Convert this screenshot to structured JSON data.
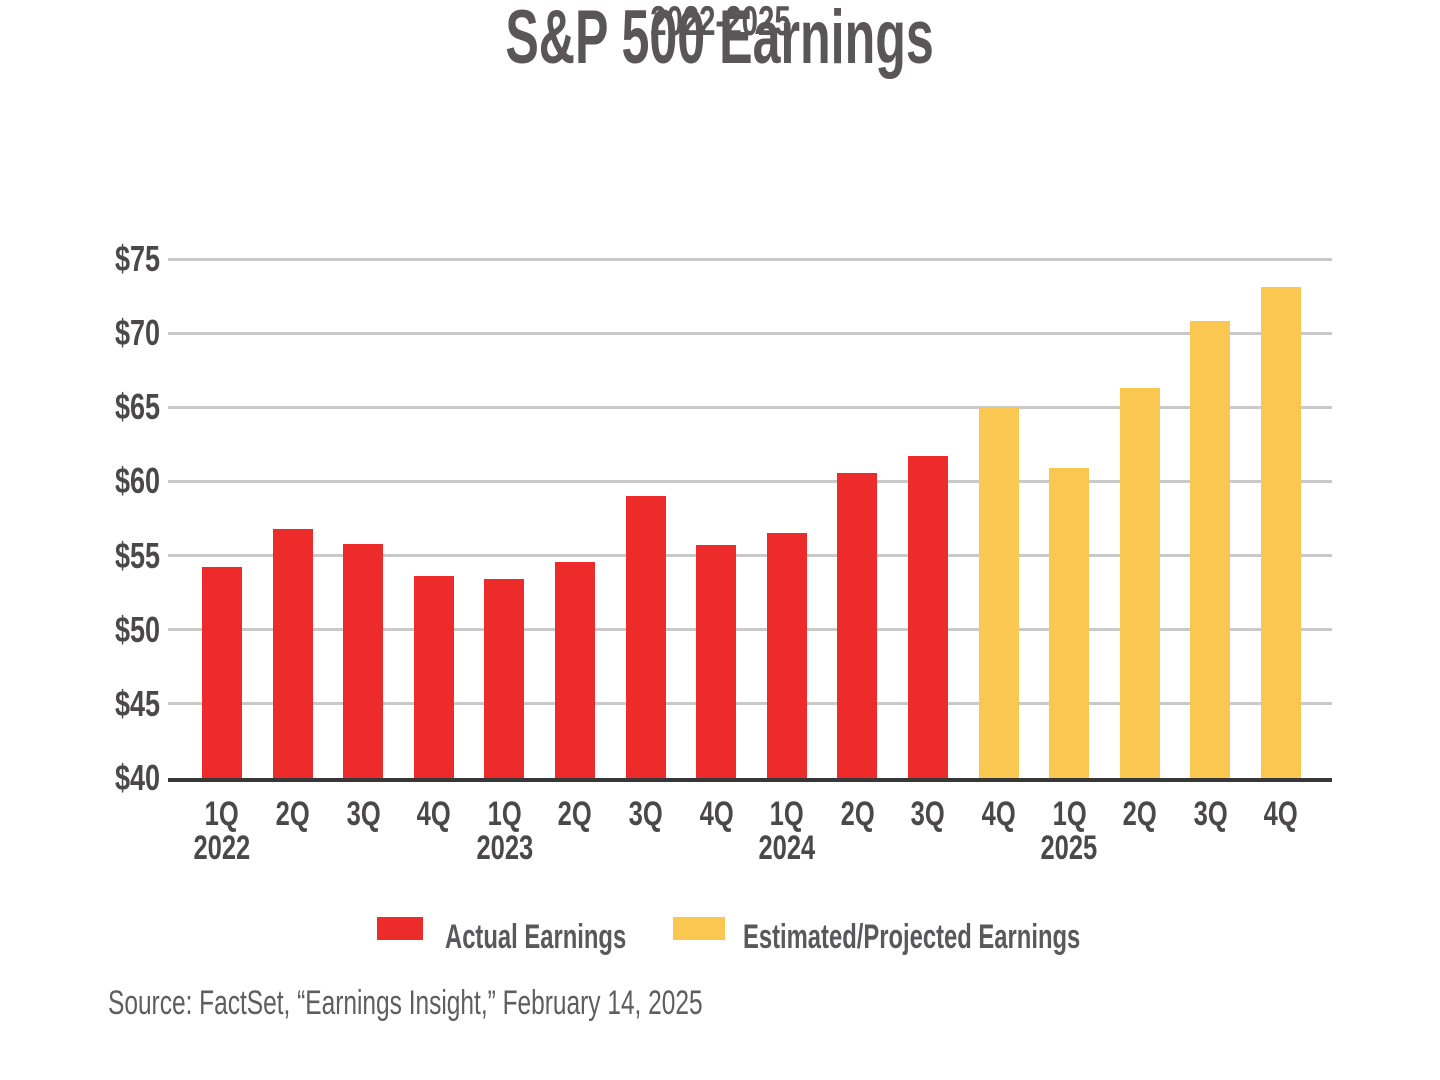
{
  "header": {
    "title": "S&P 500 Earnings",
    "subtitle": "2022-2025"
  },
  "chart_data": {
    "type": "bar",
    "title": "S&P 500 Earnings",
    "subtitle": "2022-2025",
    "xlabel": "",
    "ylabel": "",
    "ylim": [
      40,
      75
    ],
    "grid": true,
    "yticks": [
      {
        "label": "$75",
        "value": 75
      },
      {
        "label": "$70",
        "value": 70
      },
      {
        "label": "$65",
        "value": 65
      },
      {
        "label": "$60",
        "value": 60
      },
      {
        "label": "$55",
        "value": 55
      },
      {
        "label": "$50",
        "value": 50
      },
      {
        "label": "$45",
        "value": 45
      },
      {
        "label": "$40",
        "value": 40
      }
    ],
    "categories": [
      "1Q",
      "2Q",
      "3Q",
      "4Q",
      "1Q",
      "2Q",
      "3Q",
      "4Q",
      "1Q",
      "2Q",
      "3Q",
      "4Q",
      "1Q",
      "2Q",
      "3Q",
      "4Q"
    ],
    "years": [
      "2022",
      "2022",
      "2022",
      "2022",
      "2023",
      "2023",
      "2023",
      "2023",
      "2024",
      "2024",
      "2024",
      "2024",
      "2025",
      "2025",
      "2025",
      "2025"
    ],
    "year_labels": [
      {
        "text": "2022",
        "index": 0
      },
      {
        "text": "2023",
        "index": 4
      },
      {
        "text": "2024",
        "index": 8
      },
      {
        "text": "2025",
        "index": 12
      }
    ],
    "series": [
      {
        "name": "Actual Earnings",
        "color": "#ED2B2B",
        "values": [
          54.2,
          56.8,
          55.8,
          53.6,
          53.4,
          54.6,
          59.0,
          55.7,
          56.5,
          60.6,
          61.7,
          null,
          null,
          null,
          null,
          null
        ]
      },
      {
        "name": "Estimated/Projected Earnings",
        "color": "#FAC850",
        "values": [
          null,
          null,
          null,
          null,
          null,
          null,
          null,
          null,
          null,
          null,
          null,
          65.0,
          60.9,
          66.3,
          70.8,
          73.1
        ]
      }
    ],
    "legend": {
      "position": "bottom",
      "items": [
        {
          "label": "Actual Earnings",
          "color": "#ED2B2B"
        },
        {
          "label": "Estimated/Projected Earnings",
          "color": "#FAC850"
        }
      ]
    }
  },
  "colors": {
    "actual": "#ED2B2B",
    "estimate": "#FAC850",
    "gridline": "#C9C9C9",
    "axis_line": "#373737",
    "title_text": "#5A5556",
    "axis_text": "#4B4849"
  },
  "source": "Source: FactSet, “Earnings Insight,” February 14, 2025"
}
